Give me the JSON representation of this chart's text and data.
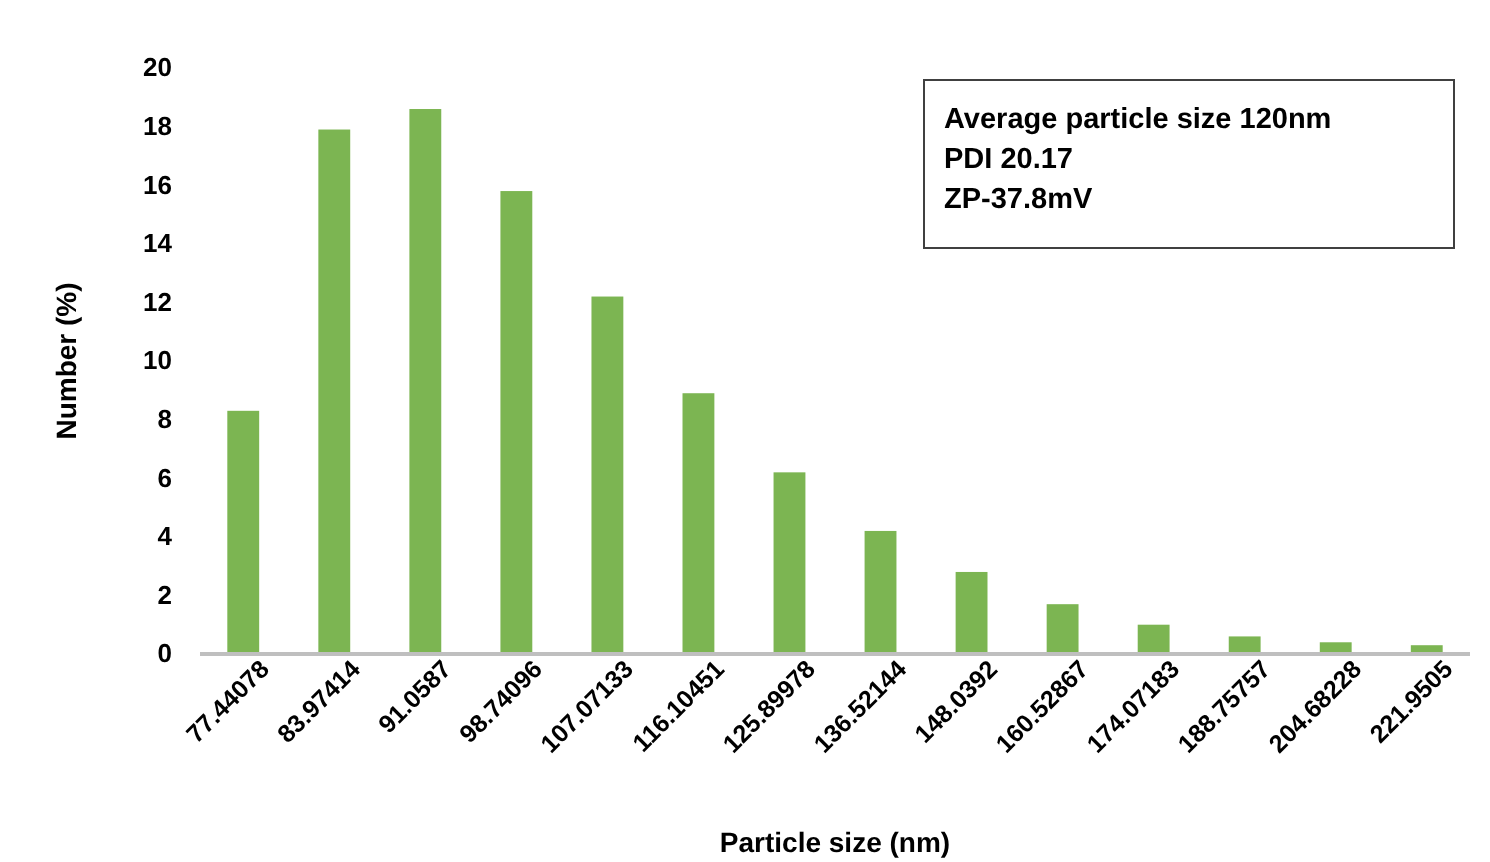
{
  "chart_data": {
    "type": "bar",
    "xlabel": "Particle size (nm)",
    "ylabel": "Number (%)",
    "categories": [
      "77.44078",
      "83.97414",
      "91.0587",
      "98.74096",
      "107.07133",
      "116.10451",
      "125.89978",
      "136.52144",
      "148.0392",
      "160.52867",
      "174.07183",
      "188.75757",
      "204.68228",
      "221.9505"
    ],
    "values": [
      8.3,
      17.9,
      18.6,
      15.8,
      12.2,
      8.9,
      6.2,
      4.2,
      2.8,
      1.7,
      1.0,
      0.6,
      0.4,
      0.3
    ],
    "color": "#7cb552",
    "ylim": [
      0,
      20
    ],
    "yticks": [
      0,
      2,
      4,
      6,
      8,
      10,
      12,
      14,
      16,
      18,
      20
    ],
    "grid": false,
    "annotations": [
      "Average particle size 120nm",
      "PDI 20.17",
      "ZP-37.8mV"
    ]
  }
}
